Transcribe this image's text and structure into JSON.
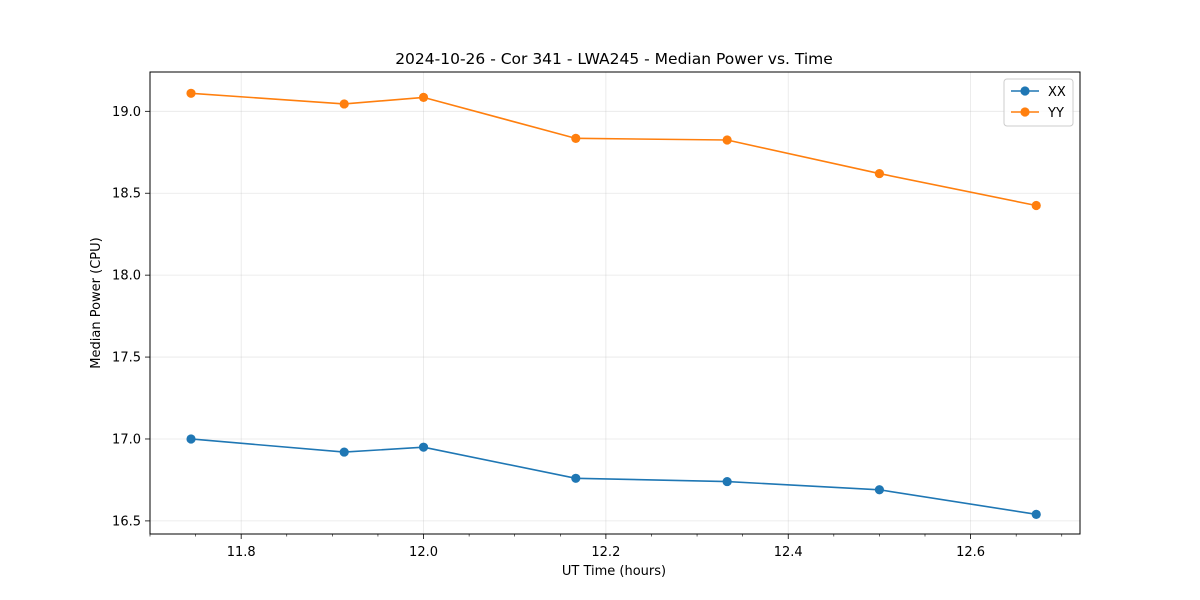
{
  "chart_data": {
    "type": "line",
    "title": "2024-10-26 - Cor 341 - LWA245 - Median Power vs. Time",
    "xlabel": "UT Time (hours)",
    "ylabel": "Median Power (CPU)",
    "xlim": [
      11.7,
      12.72
    ],
    "ylim": [
      16.42,
      19.24
    ],
    "x_ticks": [
      11.8,
      12.0,
      12.2,
      12.4,
      12.6
    ],
    "x_tick_labels": [
      "11.8",
      "12.0",
      "12.2",
      "12.4",
      "12.6"
    ],
    "x_minor_step": 0.05,
    "y_ticks": [
      16.5,
      17.0,
      17.5,
      18.0,
      18.5,
      19.0
    ],
    "y_tick_labels": [
      "16.5",
      "17.0",
      "17.5",
      "18.0",
      "18.5",
      "19.0"
    ],
    "grid": true,
    "legend_position": "top-right",
    "x": [
      11.745,
      11.913,
      12.0,
      12.167,
      12.333,
      12.5,
      12.672
    ],
    "series": [
      {
        "name": "XX",
        "color": "#1f77b4",
        "values": [
          17.0,
          16.92,
          16.95,
          16.76,
          16.74,
          16.69,
          16.54
        ]
      },
      {
        "name": "YY",
        "color": "#ff7f0e",
        "values": [
          19.11,
          19.045,
          19.085,
          18.835,
          18.825,
          18.62,
          18.425
        ]
      }
    ]
  }
}
